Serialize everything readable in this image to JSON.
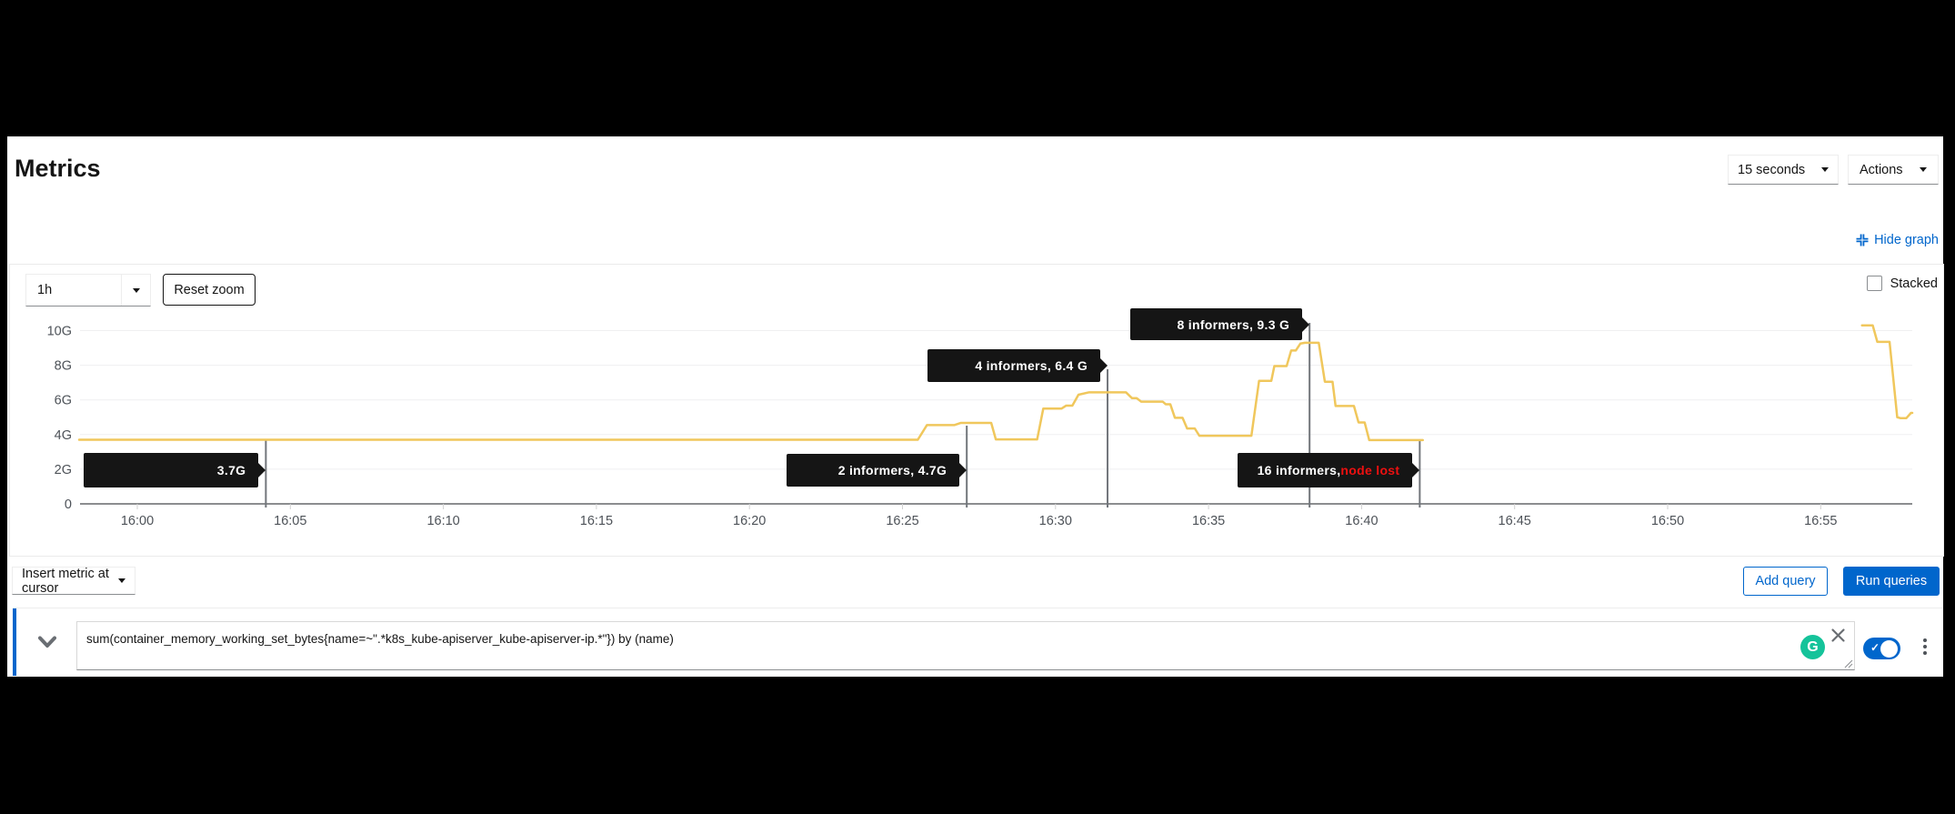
{
  "header": {
    "title": "Metrics",
    "interval_select": "15 seconds",
    "actions_label": "Actions",
    "hide_graph_label": "Hide graph",
    "accent_color": "#0066cc"
  },
  "graph_toolbar": {
    "timespan": "1h",
    "reset_zoom_label": "Reset zoom",
    "stacked_label": "Stacked",
    "stacked_checked": false
  },
  "chart_data": {
    "type": "line",
    "title": "",
    "xlabel": "",
    "ylabel": "",
    "x_ticks": [
      "16:00",
      "16:05",
      "16:10",
      "16:15",
      "16:20",
      "16:25",
      "16:30",
      "16:35",
      "16:40",
      "16:45",
      "16:50",
      "16:55"
    ],
    "x_tick_minutes": [
      0,
      5,
      10,
      15,
      20,
      25,
      30,
      35,
      40,
      45,
      50,
      55
    ],
    "y_ticks": [
      "0",
      "2G",
      "4G",
      "6G",
      "8G",
      "10G"
    ],
    "y_tick_values": [
      0,
      2,
      4,
      6,
      8,
      10
    ],
    "ylim": [
      0,
      10.8
    ],
    "x_domain_minutes": [
      -1.9,
      58.1
    ],
    "grid": true,
    "legend": false,
    "line_color": "#f0c75c",
    "series": [
      {
        "name": "sum(container_memory_working_set_bytes) by (name)",
        "unit": "G",
        "segments": [
          [
            [
              -1.9,
              3.7
            ],
            [
              25.5,
              3.7
            ],
            [
              25.8,
              4.55
            ],
            [
              26.7,
              4.55
            ],
            [
              26.9,
              4.67
            ],
            [
              27.9,
              4.67
            ],
            [
              28.05,
              3.72
            ],
            [
              29.4,
              3.72
            ],
            [
              29.6,
              5.5
            ],
            [
              30.2,
              5.5
            ],
            [
              30.35,
              5.67
            ],
            [
              30.55,
              5.67
            ],
            [
              30.75,
              6.3
            ],
            [
              31.1,
              6.44
            ],
            [
              32.3,
              6.44
            ],
            [
              32.5,
              6.1
            ],
            [
              32.65,
              6.1
            ],
            [
              32.8,
              5.9
            ],
            [
              33.5,
              5.9
            ],
            [
              33.6,
              5.75
            ],
            [
              33.75,
              5.75
            ],
            [
              33.9,
              4.97
            ],
            [
              34.15,
              4.97
            ],
            [
              34.3,
              4.35
            ],
            [
              34.55,
              4.35
            ],
            [
              34.7,
              3.93
            ],
            [
              36.4,
              3.93
            ],
            [
              36.65,
              7.1
            ],
            [
              37.05,
              7.1
            ],
            [
              37.15,
              7.95
            ],
            [
              37.55,
              7.95
            ],
            [
              37.7,
              8.85
            ],
            [
              37.85,
              8.85
            ],
            [
              38.0,
              9.25
            ],
            [
              38.15,
              9.3
            ],
            [
              38.6,
              9.3
            ],
            [
              38.8,
              7.05
            ],
            [
              39.05,
              7.05
            ],
            [
              39.15,
              5.65
            ],
            [
              39.75,
              5.65
            ],
            [
              39.9,
              4.7
            ],
            [
              40.1,
              4.7
            ],
            [
              40.25,
              3.68
            ],
            [
              42.0,
              3.68
            ]
          ],
          [
            [
              56.35,
              10.3
            ],
            [
              56.7,
              10.3
            ],
            [
              56.85,
              9.35
            ],
            [
              57.25,
              9.35
            ],
            [
              57.5,
              5.0
            ],
            [
              57.6,
              4.95
            ],
            [
              57.8,
              4.95
            ],
            [
              57.95,
              5.25
            ],
            [
              58.05,
              5.25
            ]
          ]
        ]
      }
    ],
    "annotations": [
      {
        "label": "3.7G",
        "t": 4.2,
        "value": 3.7
      },
      {
        "label": "2 informers, 4.7G",
        "t": 27.1,
        "value": 4.7
      },
      {
        "label": "4 informers, 6.4 G",
        "t": 31.7,
        "value": 6.4
      },
      {
        "label": "8 informers, 9.3 G",
        "t": 38.3,
        "value": 9.3
      },
      {
        "label": "16 informers, ",
        "label_red": "node lost",
        "t": 41.9,
        "value": 3.7
      }
    ],
    "annotation_box_color": "#151515",
    "annotation_red_color": "#ed1010",
    "marker_line_color": "#72767b",
    "axis_color": "#8b8d8f",
    "gridline_color": "#efeff1",
    "tick_label_color": "#4d5258"
  },
  "query_toolbar": {
    "insert_metric_label": "Insert metric at cursor",
    "add_query_label": "Add query",
    "run_queries_label": "Run queries"
  },
  "query_row": {
    "expression_before": "sum(container_memory_working_set_bytes{name=~\".*",
    "expression_flagged": "k8s_kube-apiserver_kube-apiserver-ip",
    "expression_after": ".*\"}) by (name)",
    "grammarly_letter": "G",
    "toggle_enabled": true
  }
}
